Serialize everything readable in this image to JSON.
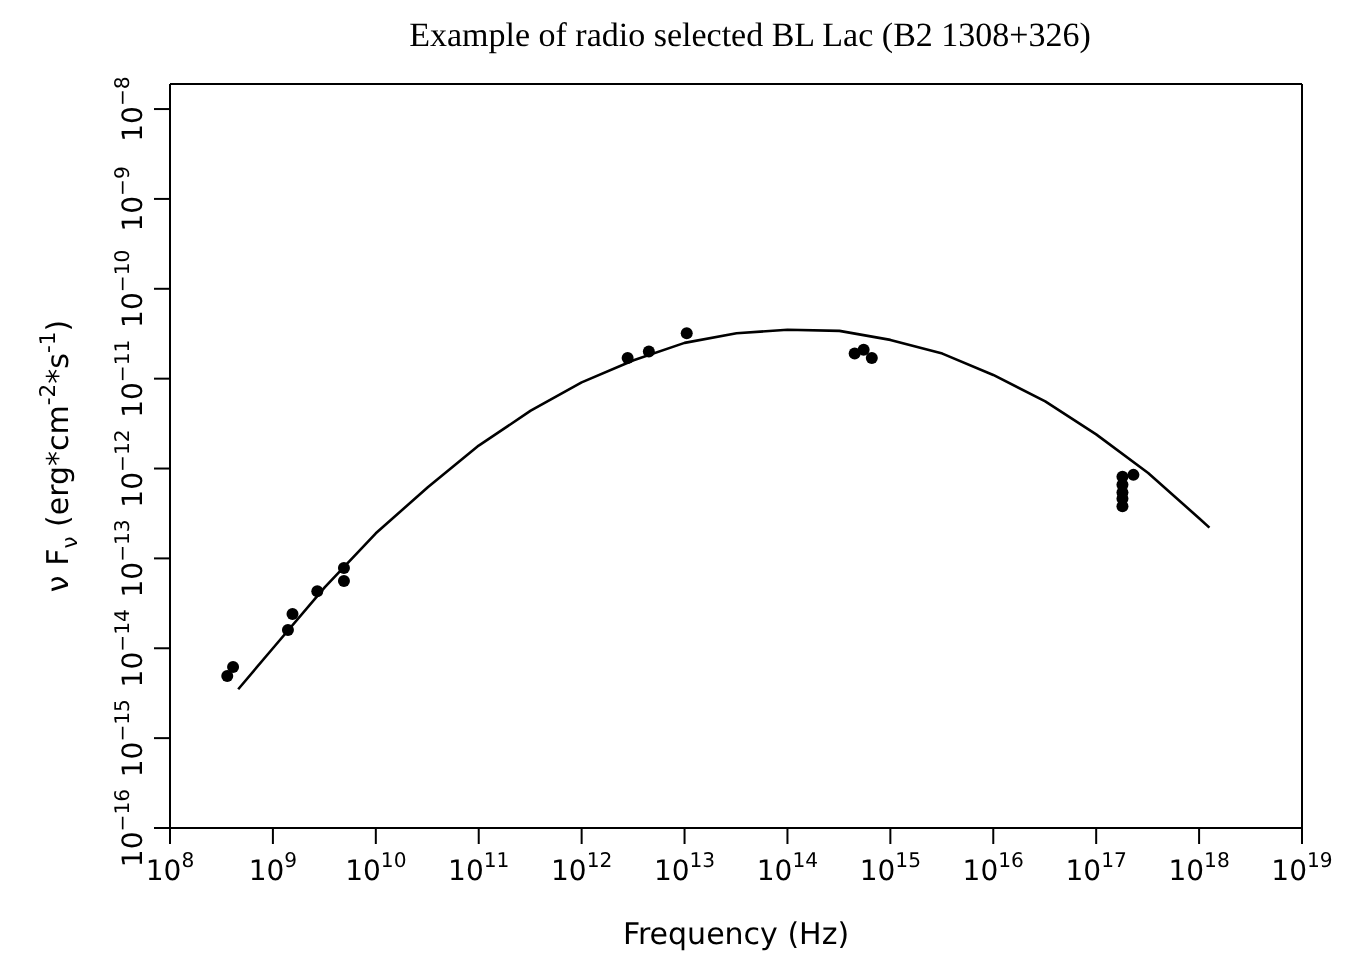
{
  "chart_data": {
    "type": "scatter",
    "title": "Example of radio selected BL Lac (B2 1308+326)",
    "xlabel": "Frequency (Hz)",
    "ylabel": "ν F$_{ν}$ (erg*cm$^{-2}$*s$^{-1}$)",
    "log": "xy",
    "xlim": [
      100000000.0,
      1e+19
    ],
    "ylim": [
      1e-16,
      1.9e-08
    ],
    "xticks": [
      {
        "value": 100000000.0,
        "label": "10$^{8}$"
      },
      {
        "value": 1000000000.0,
        "label": "10$^{9}$"
      },
      {
        "value": 10000000000.0,
        "label": "10$^{10}$"
      },
      {
        "value": 100000000000.0,
        "label": "10$^{11}$"
      },
      {
        "value": 1000000000000.0,
        "label": "10$^{12}$"
      },
      {
        "value": 10000000000000.0,
        "label": "10$^{13}$"
      },
      {
        "value": 100000000000000.0,
        "label": "10$^{14}$"
      },
      {
        "value": 1000000000000000.0,
        "label": "10$^{15}$"
      },
      {
        "value": 1e+16,
        "label": "10$^{16}$"
      },
      {
        "value": 1e+17,
        "label": "10$^{17}$"
      },
      {
        "value": 1e+18,
        "label": "10$^{18}$"
      },
      {
        "value": 1e+19,
        "label": "10$^{19}$"
      }
    ],
    "yticks": [
      {
        "value": 1e-16,
        "label": "10$^{−16}$"
      },
      {
        "value": 1e-15,
        "label": "10$^{−15}$"
      },
      {
        "value": 1e-14,
        "label": "10$^{−14}$"
      },
      {
        "value": 1e-13,
        "label": "10$^{−13}$"
      },
      {
        "value": 1e-12,
        "label": "10$^{−12}$"
      },
      {
        "value": 1e-11,
        "label": "10$^{−11}$"
      },
      {
        "value": 1e-10,
        "label": "10$^{−10}$"
      },
      {
        "value": 1e-09,
        "label": "10$^{−9}$"
      },
      {
        "value": 1e-08,
        "label": "10$^{−8}$"
      }
    ],
    "series": [
      {
        "type": "scatter",
        "color": "#000000",
        "marker": "circle",
        "x": [
          360000000.0,
          410000000.0,
          1400000000.0,
          1550000000.0,
          2700000000.0,
          4900000000.0,
          4900000000.0,
          2800000000000.0,
          4500000000000.0,
          10500000000000.0,
          450000000000000.0,
          550000000000000.0,
          660000000000000.0,
          1.8e+17,
          1.8e+17,
          1.8e+17,
          1.8e+17,
          1.8e+17,
          2.3e+17
        ],
        "values": [
          4.9e-15,
          6.2e-15,
          1.6e-14,
          2.4e-14,
          4.3e-14,
          7.8e-14,
          5.6e-14,
          1.7e-11,
          2e-11,
          3.2e-11,
          1.9e-11,
          2.1e-11,
          1.7e-11,
          8.1e-13,
          6.6e-13,
          5.4e-13,
          4.6e-13,
          3.8e-13,
          8.5e-13
        ]
      },
      {
        "type": "line",
        "color": "#000000",
        "marker": "none",
        "line_style": "solid",
        "x": [
          460000000.0,
          1000000000.0,
          3200000000.0,
          10000000000.0,
          32000000000.0,
          100000000000.0,
          320000000000.0,
          1000000000000.0,
          3200000000000.0,
          10000000000000.0,
          32000000000000.0,
          100000000000000.0,
          320000000000000.0,
          1000000000000000.0,
          3200000000000000.0,
          1e+16,
          3.2e+16,
          1e+17,
          3.2e+17,
          1e+18,
          1.26e+18
        ],
        "values": [
          3.5e-15,
          1e-14,
          4.8e-14,
          1.9e-13,
          6.2e-13,
          1.8e-12,
          4.4e-12,
          9.1e-12,
          1.6e-11,
          2.5e-11,
          3.2e-11,
          3.5e-11,
          3.4e-11,
          2.7e-11,
          1.9e-11,
          1.1e-11,
          5.6e-12,
          2.4e-12,
          8.9e-13,
          2.8e-13,
          2.2e-13
        ]
      }
    ]
  }
}
